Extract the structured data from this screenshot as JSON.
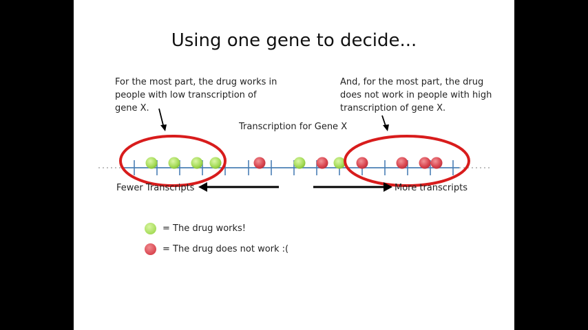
{
  "slide": {
    "title": "Using one gene to decide...",
    "note_left": "For the most part, the drug works in people with low transcription of gene X.",
    "note_right": "And, for the most part, the drug does not work in people with high transcription of gene X.",
    "axis_title": "Transcription for Gene X",
    "fewer_label": "Fewer Transcripts",
    "more_label": "More transcripts"
  },
  "legend": {
    "works_label": "= The drug works!",
    "fails_label": "= The drug does not work :(",
    "works_color": "#a6dc5a",
    "fails_color": "#d94650"
  },
  "points": [
    {
      "outcome": "works"
    },
    {
      "outcome": "works"
    },
    {
      "outcome": "works"
    },
    {
      "outcome": "works"
    },
    {
      "outcome": "fails"
    },
    {
      "outcome": "works"
    },
    {
      "outcome": "fails"
    },
    {
      "outcome": "works"
    },
    {
      "outcome": "fails"
    },
    {
      "outcome": "fails"
    },
    {
      "outcome": "fails"
    },
    {
      "outcome": "fails"
    }
  ],
  "colors": {
    "axis": "#4a7fb5",
    "ellipse": "#d81c1c",
    "arrow": "#000000"
  }
}
